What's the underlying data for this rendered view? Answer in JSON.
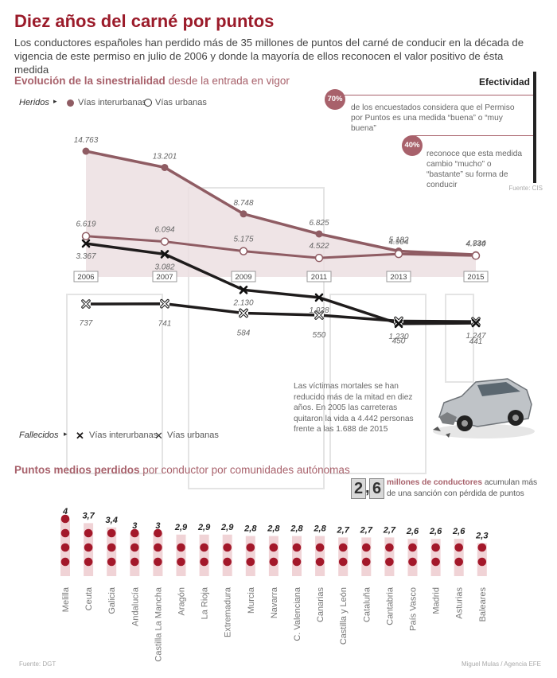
{
  "title": "Diez años del carné por puntos",
  "subtitle": "Los conductores españoles han perdido más de 35 millones de puntos del carné de conducir en la década de vigencia de este permiso en julio de 2006 y donde la mayoría de ellos reconocen el valor positivo de ésta medida",
  "section1": {
    "bold": "Evolución de la sinestrialidad",
    "rest": " desde la entrada en vigor"
  },
  "legend_heridos": {
    "label": "Heridos",
    "s1": "Vías interurbanas",
    "s2": "Vías urbanas"
  },
  "legend_fallecidos": {
    "label": "Fallecidos",
    "s1": "Vías interurbanas",
    "s2": "Vías urbanas"
  },
  "efectividad": {
    "title": "Efectividad",
    "b1": "70%",
    "t1": "de los encuestados considera que el Permiso por Puntos es una medida “buena” o “muy buena”",
    "b2": "40%",
    "t2": "reconoce que esta medida cambio “mucho” o “bastante” su forma de conducir",
    "source": "Fuente: CIS"
  },
  "victimas_note": "Las víctimas mortales se han reducido más de la mitad en diez años. En 2005 las carreteras quitaron la vida a 4.442 personas frente a las 1.688 de 2015",
  "section2": {
    "bold": "Puntos medios perdidos",
    "rest": " por conductor por comunidades autónomas"
  },
  "millones": {
    "d1": "2",
    "d2": "6",
    "sep": ",",
    "bold": "millones de conductores",
    "rest": " acumulan más de una sanción con pérdida de puntos"
  },
  "source_left": "Fuente: DGT",
  "source_right": "Miguel Mulas / Agencia EFE",
  "chart_data": [
    {
      "type": "line",
      "x": [
        "2006",
        "2007",
        "2009",
        "2011",
        "2013",
        "2015"
      ],
      "series": [
        {
          "name": "Vías interurbanas",
          "group": "Heridos",
          "values": [
            14763,
            13201,
            8748,
            6825,
            5182,
            4834
          ],
          "labels": [
            "14.763",
            "13.201",
            "8.748",
            "6.825",
            "5.182",
            "4.834"
          ]
        },
        {
          "name": "Vías urbanas",
          "group": "Heridos",
          "values": [
            6619,
            6094,
            5175,
            4522,
            4904,
            4740
          ],
          "labels": [
            "6.619",
            "6.094",
            "5.175",
            "4.522",
            "4.904",
            "4.740"
          ]
        },
        {
          "name": "Vías urbanas",
          "group": "Fallecidos",
          "values": [
            737,
            741,
            584,
            550,
            450,
            441
          ],
          "labels": [
            "737",
            "741",
            "584",
            "550",
            "450",
            "441"
          ]
        },
        {
          "name": "Vías interurbanas",
          "group": "Fallecidos",
          "values": [
            3367,
            3082,
            2130,
            1928,
            1230,
            1247
          ],
          "labels": [
            "3.367",
            "3.082",
            "2.130",
            "1.928",
            "1.230",
            "1.247"
          ]
        }
      ],
      "colors": {
        "heridos": "#8f5c63",
        "fill": "#ecdfe2",
        "fallecidos": "#1f1c1c"
      }
    },
    {
      "type": "scatter",
      "categories": [
        "Melilla",
        "Ceuta",
        "Galicia",
        "Andalucía",
        "Castilla La Mancha",
        "Aragón",
        "La Rioja",
        "Extremadura",
        "Murcia",
        "Navarra",
        "C. Valenciana",
        "Canarias",
        "Castilla y León",
        "Cataluña",
        "Cantabria",
        "País Vasco",
        "Madrid",
        "Asturias",
        "Baleares"
      ],
      "values": [
        4,
        3.7,
        3.4,
        3,
        3,
        2.9,
        2.9,
        2.9,
        2.8,
        2.8,
        2.8,
        2.8,
        2.7,
        2.7,
        2.7,
        2.6,
        2.6,
        2.6,
        2.3
      ],
      "labels": [
        "4",
        "3,7",
        "3,4",
        "3",
        "3",
        "2,9",
        "2,9",
        "2,9",
        "2,8",
        "2,8",
        "2,8",
        "2,8",
        "2,7",
        "2,7",
        "2,7",
        "2,6",
        "2,6",
        "2,6",
        "2,3"
      ],
      "colors": {
        "dot": "#a3182a",
        "bar": "#f0d3d6"
      }
    }
  ]
}
